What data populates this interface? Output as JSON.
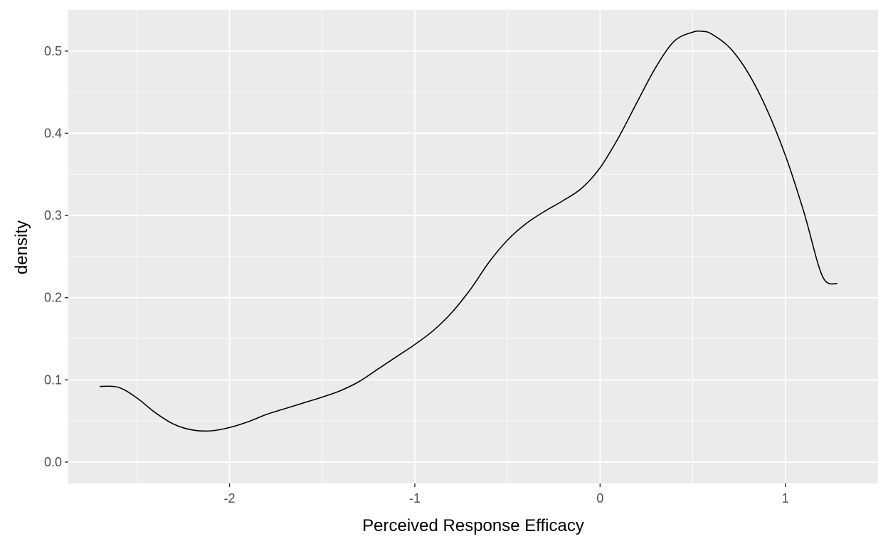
{
  "chart_data": {
    "type": "line",
    "xlabel": "Perceived Response Efficacy",
    "ylabel": "density",
    "xlim": [
      -2.87,
      1.5
    ],
    "ylim": [
      -0.026,
      0.55
    ],
    "x_ticks": [
      -2,
      -1,
      0,
      1
    ],
    "y_ticks": [
      0.0,
      0.1,
      0.2,
      0.3,
      0.4,
      0.5
    ],
    "x_tick_labels": [
      "-2",
      "-1",
      "0",
      "1"
    ],
    "y_tick_labels": [
      "0.0",
      "0.1",
      "0.2",
      "0.3",
      "0.4",
      "0.5"
    ],
    "grid": true,
    "background": "#ebebeb",
    "grid_color": "#ffffff",
    "line_color": "#000000",
    "series": [
      {
        "x": [
          -2.7,
          -2.6,
          -2.5,
          -2.4,
          -2.3,
          -2.2,
          -2.1,
          -2.0,
          -1.9,
          -1.8,
          -1.7,
          -1.6,
          -1.5,
          -1.4,
          -1.3,
          -1.2,
          -1.1,
          -1.0,
          -0.9,
          -0.8,
          -0.7,
          -0.6,
          -0.5,
          -0.4,
          -0.3,
          -0.2,
          -0.1,
          0.0,
          0.1,
          0.2,
          0.3,
          0.4,
          0.5,
          0.55,
          0.6,
          0.7,
          0.8,
          0.9,
          1.0,
          1.1,
          1.2,
          1.28
        ],
        "y": [
          0.092,
          0.091,
          0.078,
          0.06,
          0.046,
          0.039,
          0.038,
          0.042,
          0.049,
          0.058,
          0.065,
          0.072,
          0.079,
          0.087,
          0.098,
          0.113,
          0.128,
          0.143,
          0.16,
          0.182,
          0.21,
          0.243,
          0.27,
          0.29,
          0.305,
          0.318,
          0.333,
          0.358,
          0.395,
          0.438,
          0.48,
          0.512,
          0.523,
          0.524,
          0.521,
          0.504,
          0.473,
          0.429,
          0.373,
          0.304,
          0.226,
          0.217
        ]
      }
    ]
  }
}
